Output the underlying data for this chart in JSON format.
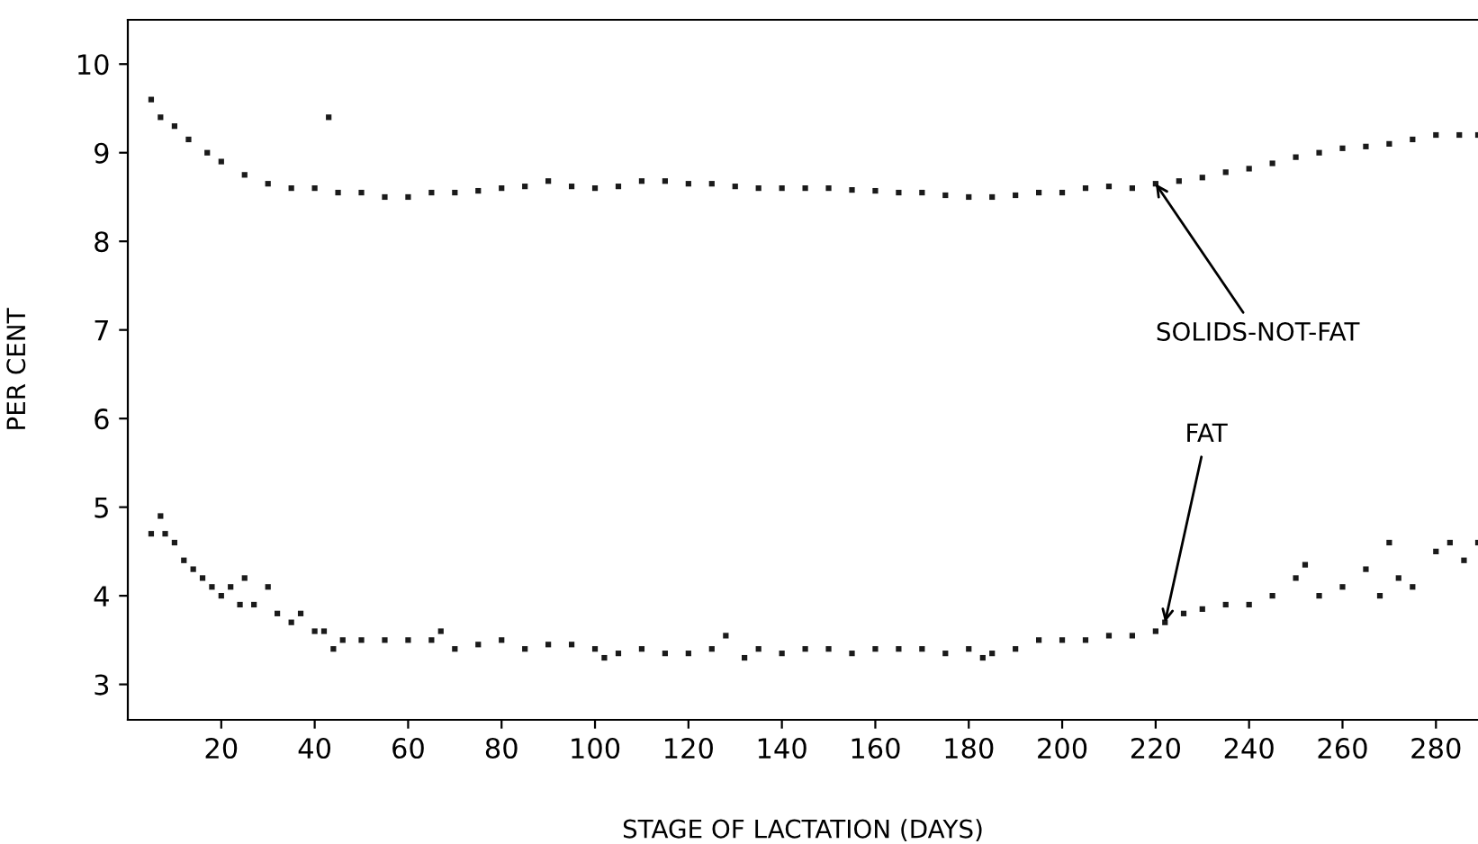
{
  "chart_data": {
    "type": "scatter",
    "xlabel": "STAGE OF LACTATION (DAYS)",
    "ylabel": "PER CENT",
    "xlim": [
      0,
      289
    ],
    "ylim": [
      2.6,
      10.5
    ],
    "xticks": [
      20,
      40,
      60,
      80,
      100,
      120,
      140,
      160,
      180,
      200,
      220,
      240,
      260,
      280
    ],
    "yticks": [
      3,
      4,
      5,
      6,
      7,
      8,
      9,
      10
    ],
    "grid": false,
    "marker": "square",
    "series": [
      {
        "color": "#1a1a1a",
        "x": [
          5,
          7,
          10,
          13,
          17,
          20,
          25,
          30,
          35,
          40,
          43,
          45,
          50,
          55,
          60,
          65,
          70,
          75,
          80,
          85,
          90,
          95,
          100,
          105,
          110,
          115,
          120,
          125,
          130,
          135,
          140,
          145,
          150,
          155,
          160,
          165,
          170,
          175,
          180,
          185,
          190,
          195,
          200,
          205,
          210,
          215,
          220,
          225,
          230,
          235,
          240,
          245,
          250,
          255,
          260,
          265,
          270,
          275,
          280,
          285,
          289
        ],
        "values": [
          9.6,
          9.4,
          9.3,
          9.15,
          9.0,
          8.9,
          8.75,
          8.65,
          8.6,
          8.6,
          9.4,
          8.55,
          8.55,
          8.5,
          8.5,
          8.55,
          8.55,
          8.57,
          8.6,
          8.62,
          8.68,
          8.62,
          8.6,
          8.62,
          8.68,
          8.68,
          8.65,
          8.65,
          8.62,
          8.6,
          8.6,
          8.6,
          8.6,
          8.58,
          8.57,
          8.55,
          8.55,
          8.52,
          8.5,
          8.5,
          8.52,
          8.55,
          8.55,
          8.6,
          8.62,
          8.6,
          8.65,
          8.68,
          8.72,
          8.78,
          8.82,
          8.88,
          8.95,
          9.0,
          9.05,
          9.07,
          9.1,
          9.15,
          9.2,
          9.2,
          9.2
        ]
      },
      {
        "color": "#1a1a1a",
        "x": [
          5,
          7,
          8,
          10,
          12,
          14,
          16,
          18,
          20,
          22,
          24,
          25,
          27,
          30,
          32,
          35,
          37,
          40,
          42,
          44,
          46,
          50,
          55,
          60,
          65,
          67,
          70,
          75,
          80,
          85,
          90,
          95,
          100,
          102,
          105,
          110,
          115,
          120,
          125,
          128,
          132,
          135,
          140,
          145,
          150,
          155,
          160,
          165,
          170,
          175,
          180,
          183,
          185,
          190,
          195,
          200,
          205,
          210,
          215,
          220,
          222,
          226,
          230,
          235,
          240,
          245,
          250,
          252,
          255,
          260,
          265,
          268,
          270,
          272,
          275,
          280,
          283,
          286,
          289
        ],
        "values": [
          4.7,
          4.9,
          4.7,
          4.6,
          4.4,
          4.3,
          4.2,
          4.1,
          4.0,
          4.1,
          3.9,
          4.2,
          3.9,
          4.1,
          3.8,
          3.7,
          3.8,
          3.6,
          3.6,
          3.4,
          3.5,
          3.5,
          3.5,
          3.5,
          3.5,
          3.6,
          3.4,
          3.45,
          3.5,
          3.4,
          3.45,
          3.45,
          3.4,
          3.3,
          3.35,
          3.4,
          3.35,
          3.35,
          3.4,
          3.55,
          3.3,
          3.4,
          3.35,
          3.4,
          3.4,
          3.35,
          3.4,
          3.4,
          3.4,
          3.35,
          3.4,
          3.3,
          3.35,
          3.4,
          3.5,
          3.5,
          3.5,
          3.55,
          3.55,
          3.6,
          3.7,
          3.8,
          3.85,
          3.9,
          3.9,
          4.0,
          4.2,
          4.35,
          4.0,
          4.1,
          4.3,
          4.0,
          4.6,
          4.2,
          4.1,
          4.5,
          4.6,
          4.4,
          4.6
        ]
      }
    ],
    "annotations": [
      {
        "text": "SOLIDS-NOT-FAT",
        "x": 220,
        "y": 8.65
      },
      {
        "text": "FAT",
        "x": 222,
        "y": 3.7
      }
    ]
  }
}
